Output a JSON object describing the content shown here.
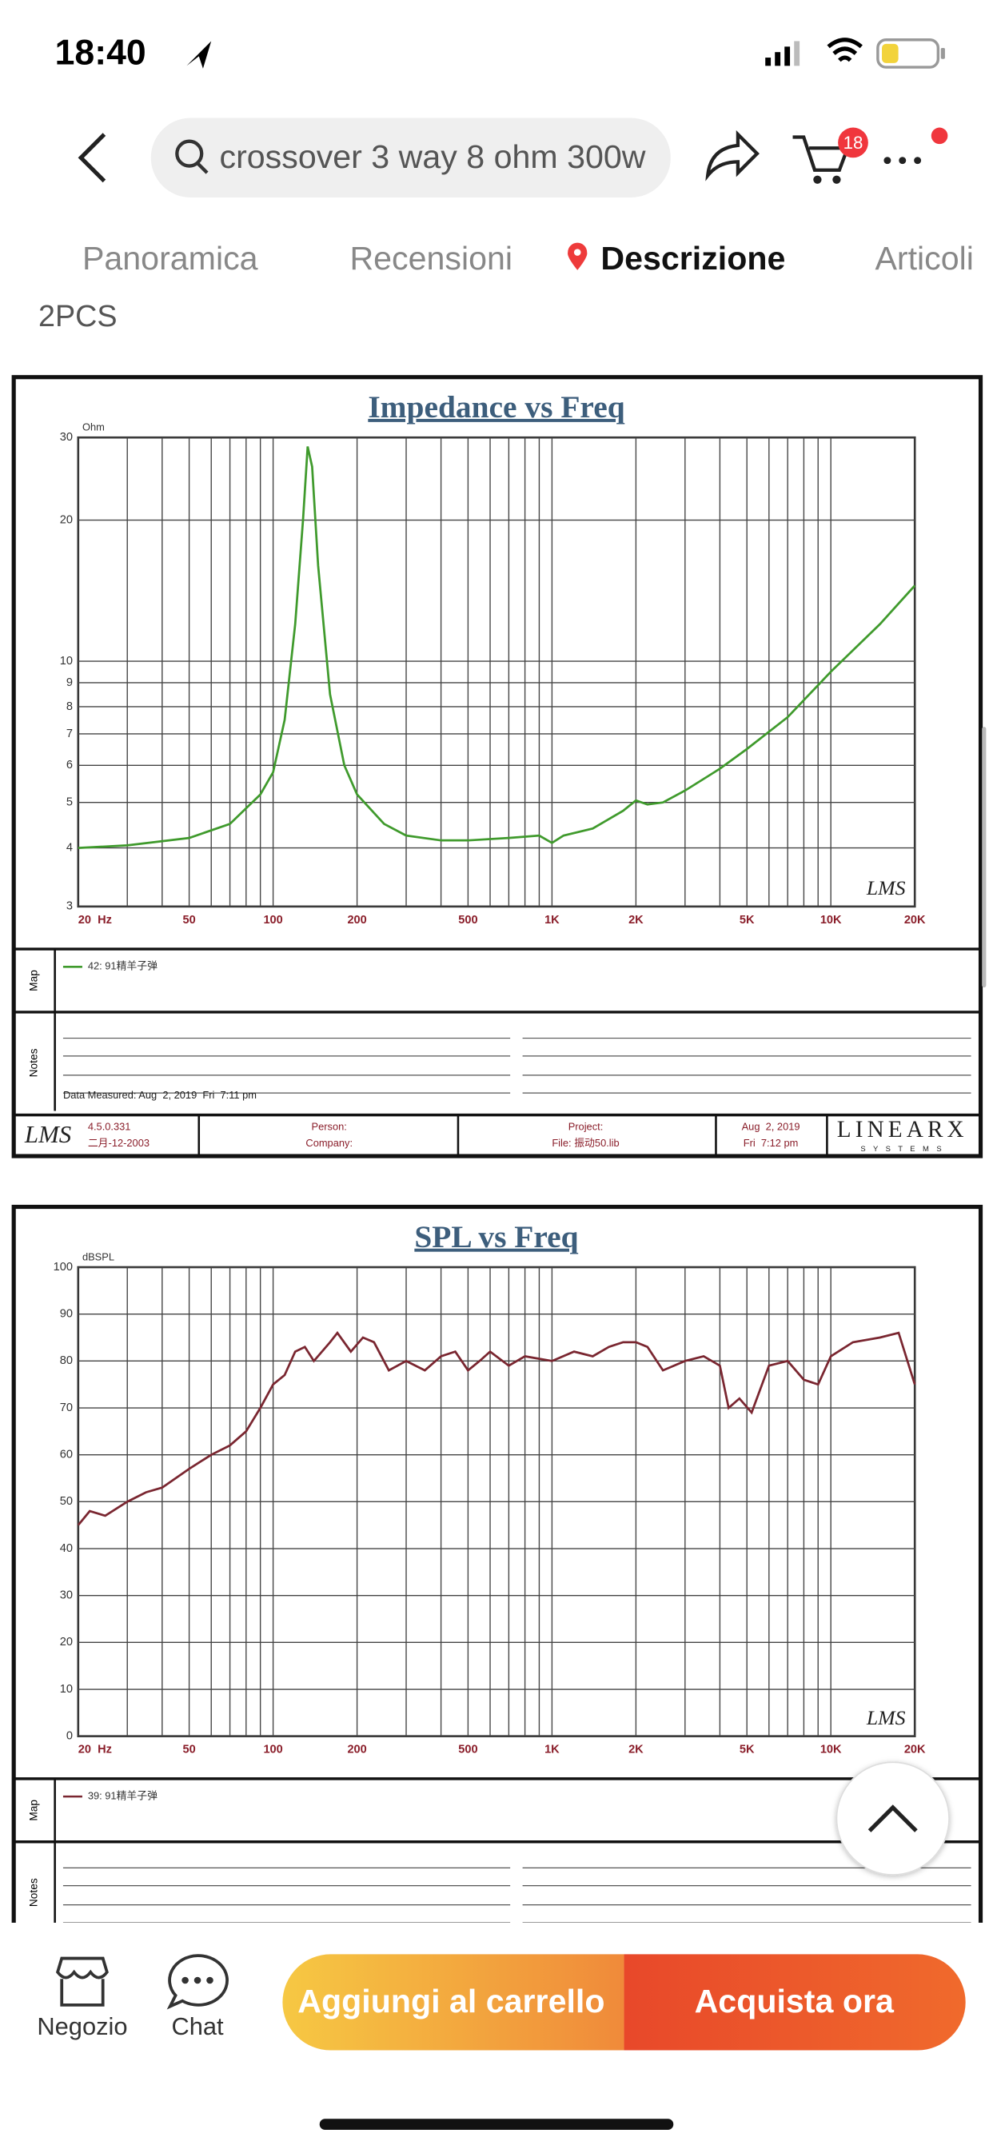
{
  "status_bar": {
    "time": "18:40"
  },
  "search": {
    "query": "crossover 3 way 8 ohm 300w",
    "cart_badge": "18"
  },
  "tabs": [
    "Panoramica",
    "Recensioni",
    "Descrizione",
    "Articoli"
  ],
  "description_text": "2PCS",
  "charts": [
    {
      "type": "line",
      "title": "Impedance vs Freq",
      "y_unit": "Ohm",
      "log_x": true,
      "log_y": true,
      "watermark": "LMS",
      "xlim": [
        20,
        20000
      ],
      "ylim": [
        3,
        30
      ],
      "xticks": [
        {
          "value": 20,
          "label": "20  Hz"
        },
        50,
        100,
        200,
        500,
        {
          "value": 1000,
          "label": "1K"
        },
        {
          "value": 2000,
          "label": "2K"
        },
        {
          "value": 5000,
          "label": "5K"
        },
        {
          "value": 10000,
          "label": "10K"
        },
        {
          "value": 20000,
          "label": "20K"
        }
      ],
      "xminor": [
        30,
        40,
        60,
        70,
        80,
        90,
        300,
        400,
        600,
        700,
        800,
        900,
        3000,
        4000,
        6000,
        7000,
        8000,
        9000
      ],
      "yticks": [
        3,
        4,
        5,
        6,
        7,
        8,
        9,
        10,
        20,
        30
      ],
      "series": [
        {
          "name": "42: 91精羊子弹",
          "color": "#3f9a2c",
          "x": [
            20,
            30,
            50,
            70,
            90,
            100,
            110,
            120,
            128,
            133,
            138,
            145,
            160,
            180,
            200,
            250,
            300,
            400,
            500,
            700,
            900,
            1000,
            1100,
            1400,
            1800,
            2000,
            2200,
            2500,
            3000,
            4000,
            5000,
            7000,
            10000,
            15000,
            20000
          ],
          "values": [
            4.0,
            4.05,
            4.2,
            4.5,
            5.2,
            5.8,
            7.5,
            12,
            20,
            28.7,
            26,
            16,
            8.5,
            6,
            5.2,
            4.5,
            4.25,
            4.15,
            4.15,
            4.2,
            4.25,
            4.1,
            4.25,
            4.4,
            4.8,
            5.05,
            4.95,
            5.0,
            5.3,
            5.9,
            6.5,
            7.6,
            9.5,
            12,
            14.5
          ]
        }
      ],
      "map_label": "Map",
      "notes_label": "Notes",
      "measured": "Data Measured: Aug  2, 2019  Fri  7:11 pm",
      "footer": {
        "logo": "LMS",
        "version": "4.5.0.331",
        "version_date": "二月-12-2003",
        "person": "Person:",
        "company": "Company:",
        "project": "Project:",
        "file": "File: 振动50.lib",
        "date": "Aug  2, 2019",
        "time": "Fri  7:12 pm",
        "brand": "LINEARX",
        "brand_sub": "S Y S T E M S"
      }
    },
    {
      "type": "line",
      "title": "SPL vs Freq",
      "y_unit": "dBSPL",
      "log_x": true,
      "log_y": false,
      "watermark": "LMS",
      "xlim": [
        20,
        20000
      ],
      "ylim": [
        0,
        100
      ],
      "xticks": [
        {
          "value": 20,
          "label": "20  Hz"
        },
        50,
        100,
        200,
        500,
        {
          "value": 1000,
          "label": "1K"
        },
        {
          "value": 2000,
          "label": "2K"
        },
        {
          "value": 5000,
          "label": "5K"
        },
        {
          "value": 10000,
          "label": "10K"
        },
        {
          "value": 20000,
          "label": "20K"
        }
      ],
      "xminor": [
        30,
        40,
        60,
        70,
        80,
        90,
        300,
        400,
        600,
        700,
        800,
        900,
        3000,
        4000,
        6000,
        7000,
        8000,
        9000
      ],
      "yticks": [
        0,
        10,
        20,
        30,
        40,
        50,
        60,
        70,
        80,
        90,
        100
      ],
      "series": [
        {
          "name": "39: 91精羊子弹",
          "color": "#7a2630",
          "x": [
            20,
            22,
            25,
            30,
            35,
            40,
            50,
            60,
            70,
            80,
            90,
            100,
            110,
            120,
            130,
            140,
            160,
            170,
            190,
            210,
            230,
            260,
            300,
            350,
            400,
            450,
            500,
            550,
            600,
            700,
            800,
            1000,
            1200,
            1400,
            1600,
            1800,
            2000,
            2200,
            2500,
            3000,
            3500,
            4000,
            4300,
            4700,
            5200,
            6000,
            7000,
            8000,
            9000,
            10000,
            12000,
            15000,
            17500,
            20000
          ],
          "values": [
            45,
            48,
            47,
            50,
            52,
            53,
            57,
            60,
            62,
            65,
            70,
            75,
            77,
            82,
            83,
            80,
            84,
            86,
            82,
            85,
            84,
            78,
            80,
            78,
            81,
            82,
            78,
            80,
            82,
            79,
            81,
            80,
            82,
            81,
            83,
            84,
            84,
            83,
            78,
            80,
            81,
            79,
            70,
            72,
            69,
            79,
            80,
            76,
            75,
            81,
            84,
            85,
            86,
            75
          ]
        }
      ],
      "map_label": "Map",
      "notes_label": "Notes"
    }
  ],
  "bottom_bar": {
    "shop": "Negozio",
    "chat": "Chat",
    "add_to_cart": "Aggiungi al carrello",
    "buy_now": "Acquista ora"
  }
}
